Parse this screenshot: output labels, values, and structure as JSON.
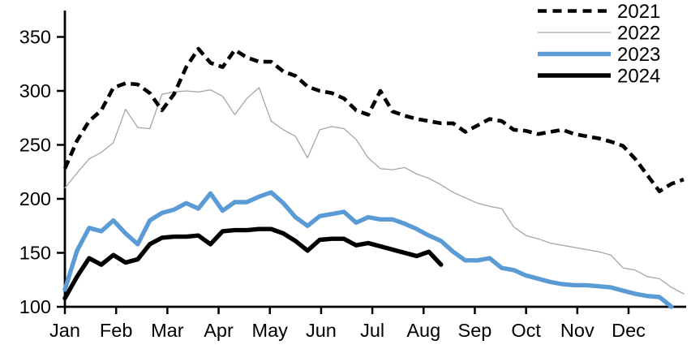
{
  "chart_data": {
    "type": "line",
    "title": "",
    "xlabel": "",
    "ylabel": "",
    "x_unit": "week",
    "categories": [
      "Jan",
      "Feb",
      "Mar",
      "Apr",
      "May",
      "Jun",
      "Jul",
      "Aug",
      "Sep",
      "Oct",
      "Nov",
      "Dec"
    ],
    "yticks": [
      100,
      150,
      200,
      250,
      300,
      350
    ],
    "ylim": [
      100,
      350
    ],
    "grid": false,
    "legend_position": "top-right",
    "series": [
      {
        "name": "2021",
        "color": "#000000",
        "style": "dashed",
        "width": 4.6,
        "values": [
          228,
          254,
          272,
          282,
          303,
          307,
          306,
          298,
          282,
          297,
          322,
          339,
          326,
          322,
          338,
          331,
          327,
          327,
          318,
          314,
          304,
          300,
          298,
          293,
          282,
          278,
          300,
          281,
          277,
          274,
          272,
          270,
          270,
          262,
          268,
          274,
          272,
          264,
          263,
          260,
          262,
          264,
          260,
          258,
          256,
          253,
          249,
          237,
          222,
          207,
          214,
          218
        ]
      },
      {
        "name": "2022",
        "color": "#a6a6a6",
        "style": "solid",
        "width": 1.3,
        "values": [
          210,
          224,
          237,
          243,
          252,
          283,
          266,
          265,
          297,
          299,
          300,
          299,
          301,
          295,
          278,
          293,
          303,
          272,
          264,
          258,
          238,
          264,
          267,
          265,
          255,
          238,
          228,
          227,
          229,
          223,
          219,
          213,
          206,
          201,
          196,
          193,
          191,
          174,
          166,
          163,
          159,
          157,
          155,
          153,
          151,
          148,
          136,
          134,
          128,
          126,
          118,
          112
        ]
      },
      {
        "name": "2023",
        "color": "#5b9bd5",
        "style": "solid",
        "width": 5.4,
        "values": [
          116,
          152,
          173,
          170,
          180,
          168,
          158,
          180,
          187,
          190,
          196,
          191,
          205,
          189,
          197,
          197,
          202,
          206,
          196,
          183,
          175,
          184,
          186,
          188,
          178,
          183,
          181,
          181,
          177,
          172,
          166,
          161,
          151,
          143,
          143,
          145,
          136,
          134,
          129,
          126,
          123,
          121,
          120,
          120,
          119,
          118,
          115,
          112,
          110,
          109,
          100
        ]
      },
      {
        "name": "2024",
        "color": "#000000",
        "style": "solid",
        "width": 5.4,
        "values": [
          108,
          128,
          145,
          139,
          148,
          141,
          144,
          158,
          164,
          165,
          165,
          166,
          158,
          170,
          171,
          171,
          172,
          172,
          168,
          161,
          152,
          162,
          163,
          163,
          157,
          159,
          156,
          153,
          150,
          147,
          151,
          139
        ]
      }
    ]
  }
}
